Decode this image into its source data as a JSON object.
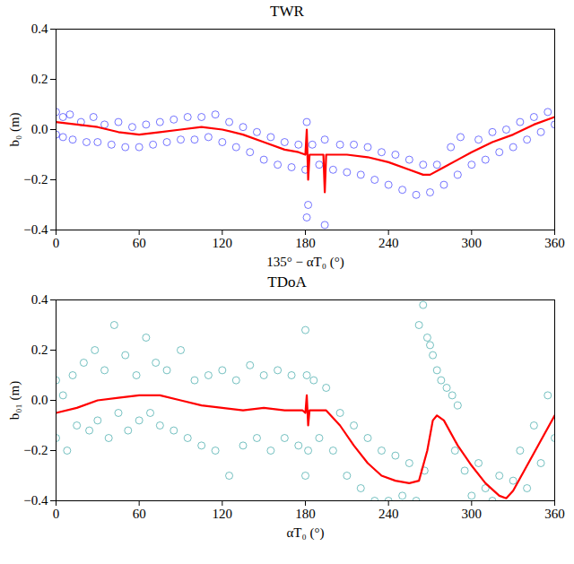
{
  "chart_data": [
    {
      "type": "scatter",
      "title": "TWR",
      "xlabel": "135° − αT₀ (°)",
      "ylabel": "b₀ (m)",
      "xlim": [
        0,
        360
      ],
      "xticks": [
        0,
        60,
        120,
        180,
        240,
        300,
        360
      ],
      "ylim": [
        -0.4,
        0.4
      ],
      "yticks": [
        {
          "value": -0.4,
          "label": "−0.4"
        },
        {
          "value": -0.2,
          "label": "−0.2"
        },
        {
          "value": 0,
          "label": "0.0"
        },
        0.2,
        0.4
      ],
      "grid": false,
      "series": [
        {
          "type": "scatter",
          "color": "#0000ff",
          "marker": "circle",
          "x": [
            0,
            0,
            5,
            5,
            10,
            12,
            18,
            22,
            27,
            30,
            35,
            40,
            45,
            50,
            55,
            60,
            65,
            70,
            75,
            80,
            85,
            90,
            95,
            100,
            105,
            110,
            115,
            120,
            125,
            130,
            135,
            140,
            145,
            150,
            155,
            160,
            165,
            170,
            175,
            180,
            181,
            181,
            182,
            185,
            190,
            194,
            194,
            200,
            205,
            210,
            215,
            220,
            225,
            230,
            235,
            240,
            245,
            250,
            255,
            260,
            265,
            270,
            275,
            280,
            285,
            290,
            292,
            300,
            305,
            310,
            315,
            320,
            325,
            330,
            335,
            340,
            345,
            350,
            355,
            360
          ],
          "values": [
            0.07,
            -0.02,
            0.05,
            -0.03,
            0.06,
            -0.04,
            0.03,
            -0.05,
            0.05,
            -0.05,
            0.02,
            -0.06,
            0.03,
            -0.07,
            0.01,
            -0.07,
            0.02,
            -0.06,
            0.03,
            -0.05,
            0.04,
            -0.04,
            0.05,
            -0.04,
            0.05,
            -0.03,
            0.06,
            -0.05,
            0.03,
            -0.07,
            0.01,
            -0.09,
            -0.01,
            -0.12,
            -0.03,
            -0.14,
            -0.05,
            -0.15,
            -0.06,
            -0.16,
            -0.35,
            0.03,
            -0.3,
            -0.06,
            -0.14,
            -0.38,
            -0.04,
            -0.16,
            -0.06,
            -0.17,
            -0.06,
            -0.18,
            -0.07,
            -0.2,
            -0.09,
            -0.22,
            -0.1,
            -0.24,
            -0.12,
            -0.26,
            -0.14,
            -0.25,
            -0.14,
            -0.22,
            -0.07,
            -0.18,
            -0.03,
            -0.14,
            -0.04,
            -0.12,
            -0.01,
            -0.09,
            0.0,
            -0.07,
            0.03,
            -0.04,
            0.05,
            -0.01,
            0.07,
            0.02
          ]
        },
        {
          "type": "line",
          "color": "#ff0000",
          "line_style": "solid",
          "x": [
            0,
            15,
            30,
            45,
            60,
            75,
            90,
            105,
            120,
            135,
            150,
            165,
            175,
            180,
            181,
            182,
            183,
            190,
            193,
            194,
            195,
            210,
            225,
            240,
            255,
            265,
            270,
            280,
            290,
            300,
            315,
            330,
            345,
            360
          ],
          "values": [
            0.03,
            0.02,
            0.01,
            -0.01,
            -0.02,
            -0.01,
            0.0,
            0.01,
            0.0,
            -0.02,
            -0.05,
            -0.08,
            -0.09,
            -0.1,
            0.0,
            -0.2,
            -0.1,
            -0.1,
            -0.1,
            -0.25,
            -0.1,
            -0.1,
            -0.11,
            -0.13,
            -0.16,
            -0.18,
            -0.18,
            -0.15,
            -0.12,
            -0.09,
            -0.05,
            -0.02,
            0.02,
            0.05
          ]
        }
      ]
    },
    {
      "type": "scatter",
      "title": "TDoA",
      "xlabel": "αT₀ (°)",
      "ylabel": "b₀₁ (m)",
      "xlim": [
        0,
        360
      ],
      "xticks": [
        0,
        60,
        120,
        180,
        240,
        300,
        360
      ],
      "ylim": [
        -0.4,
        0.4
      ],
      "yticks": [
        {
          "value": -0.4,
          "label": "−0.4"
        },
        {
          "value": -0.2,
          "label": "−0.2"
        },
        {
          "value": 0,
          "label": "0.0"
        },
        0.2,
        0.4
      ],
      "grid": false,
      "series": [
        {
          "type": "scatter",
          "color": "#008b8b",
          "marker": "circle",
          "x": [
            0,
            0,
            5,
            8,
            12,
            15,
            20,
            24,
            28,
            30,
            35,
            38,
            42,
            45,
            50,
            52,
            58,
            60,
            65,
            68,
            72,
            75,
            80,
            85,
            90,
            95,
            100,
            105,
            110,
            115,
            120,
            125,
            130,
            135,
            140,
            145,
            150,
            155,
            160,
            165,
            170,
            175,
            180,
            180,
            181,
            182,
            186,
            190,
            195,
            200,
            205,
            210,
            215,
            220,
            225,
            230,
            235,
            240,
            245,
            250,
            255,
            260,
            262,
            265,
            266,
            268,
            270,
            272,
            275,
            278,
            282,
            286,
            290,
            288,
            295,
            300,
            305,
            310,
            315,
            320,
            330,
            335,
            340,
            345,
            350,
            355,
            360
          ],
          "values": [
            0.08,
            -0.15,
            0.02,
            -0.2,
            0.1,
            -0.1,
            0.15,
            -0.12,
            0.2,
            -0.08,
            0.12,
            -0.15,
            0.3,
            -0.05,
            0.18,
            -0.12,
            0.1,
            -0.08,
            0.25,
            -0.05,
            0.15,
            -0.1,
            0.12,
            -0.12,
            0.2,
            -0.15,
            0.08,
            -0.18,
            0.1,
            -0.2,
            0.12,
            -0.3,
            0.08,
            -0.18,
            0.14,
            -0.15,
            0.1,
            -0.2,
            0.12,
            -0.15,
            0.1,
            -0.18,
            0.28,
            -0.3,
            0.1,
            -0.2,
            0.08,
            -0.15,
            0.05,
            -0.2,
            -0.05,
            -0.3,
            -0.1,
            -0.35,
            -0.15,
            -0.4,
            -0.2,
            -0.4,
            -0.22,
            -0.38,
            -0.25,
            -0.4,
            0.3,
            0.38,
            -0.28,
            0.25,
            0.22,
            0.18,
            0.12,
            0.08,
            0.05,
            0.02,
            -0.02,
            -0.2,
            -0.28,
            -0.38,
            -0.25,
            -0.35,
            -0.4,
            -0.3,
            -0.32,
            -0.2,
            -0.35,
            -0.1,
            -0.25,
            0.02,
            -0.15
          ]
        },
        {
          "type": "line",
          "color": "#ff0000",
          "line_style": "solid",
          "x": [
            0,
            15,
            30,
            45,
            60,
            75,
            90,
            105,
            120,
            135,
            150,
            165,
            178,
            180,
            181,
            182,
            183,
            195,
            205,
            215,
            225,
            235,
            245,
            255,
            262,
            268,
            272,
            275,
            280,
            290,
            300,
            310,
            320,
            325,
            330,
            340,
            350,
            360
          ],
          "values": [
            -0.05,
            -0.03,
            0.0,
            0.01,
            0.02,
            0.02,
            0.0,
            -0.02,
            -0.03,
            -0.04,
            -0.03,
            -0.04,
            -0.04,
            -0.05,
            0.02,
            -0.1,
            -0.04,
            -0.04,
            -0.1,
            -0.18,
            -0.25,
            -0.3,
            -0.32,
            -0.33,
            -0.32,
            -0.2,
            -0.08,
            -0.06,
            -0.08,
            -0.18,
            -0.26,
            -0.33,
            -0.38,
            -0.39,
            -0.36,
            -0.26,
            -0.16,
            -0.06
          ]
        }
      ]
    }
  ]
}
